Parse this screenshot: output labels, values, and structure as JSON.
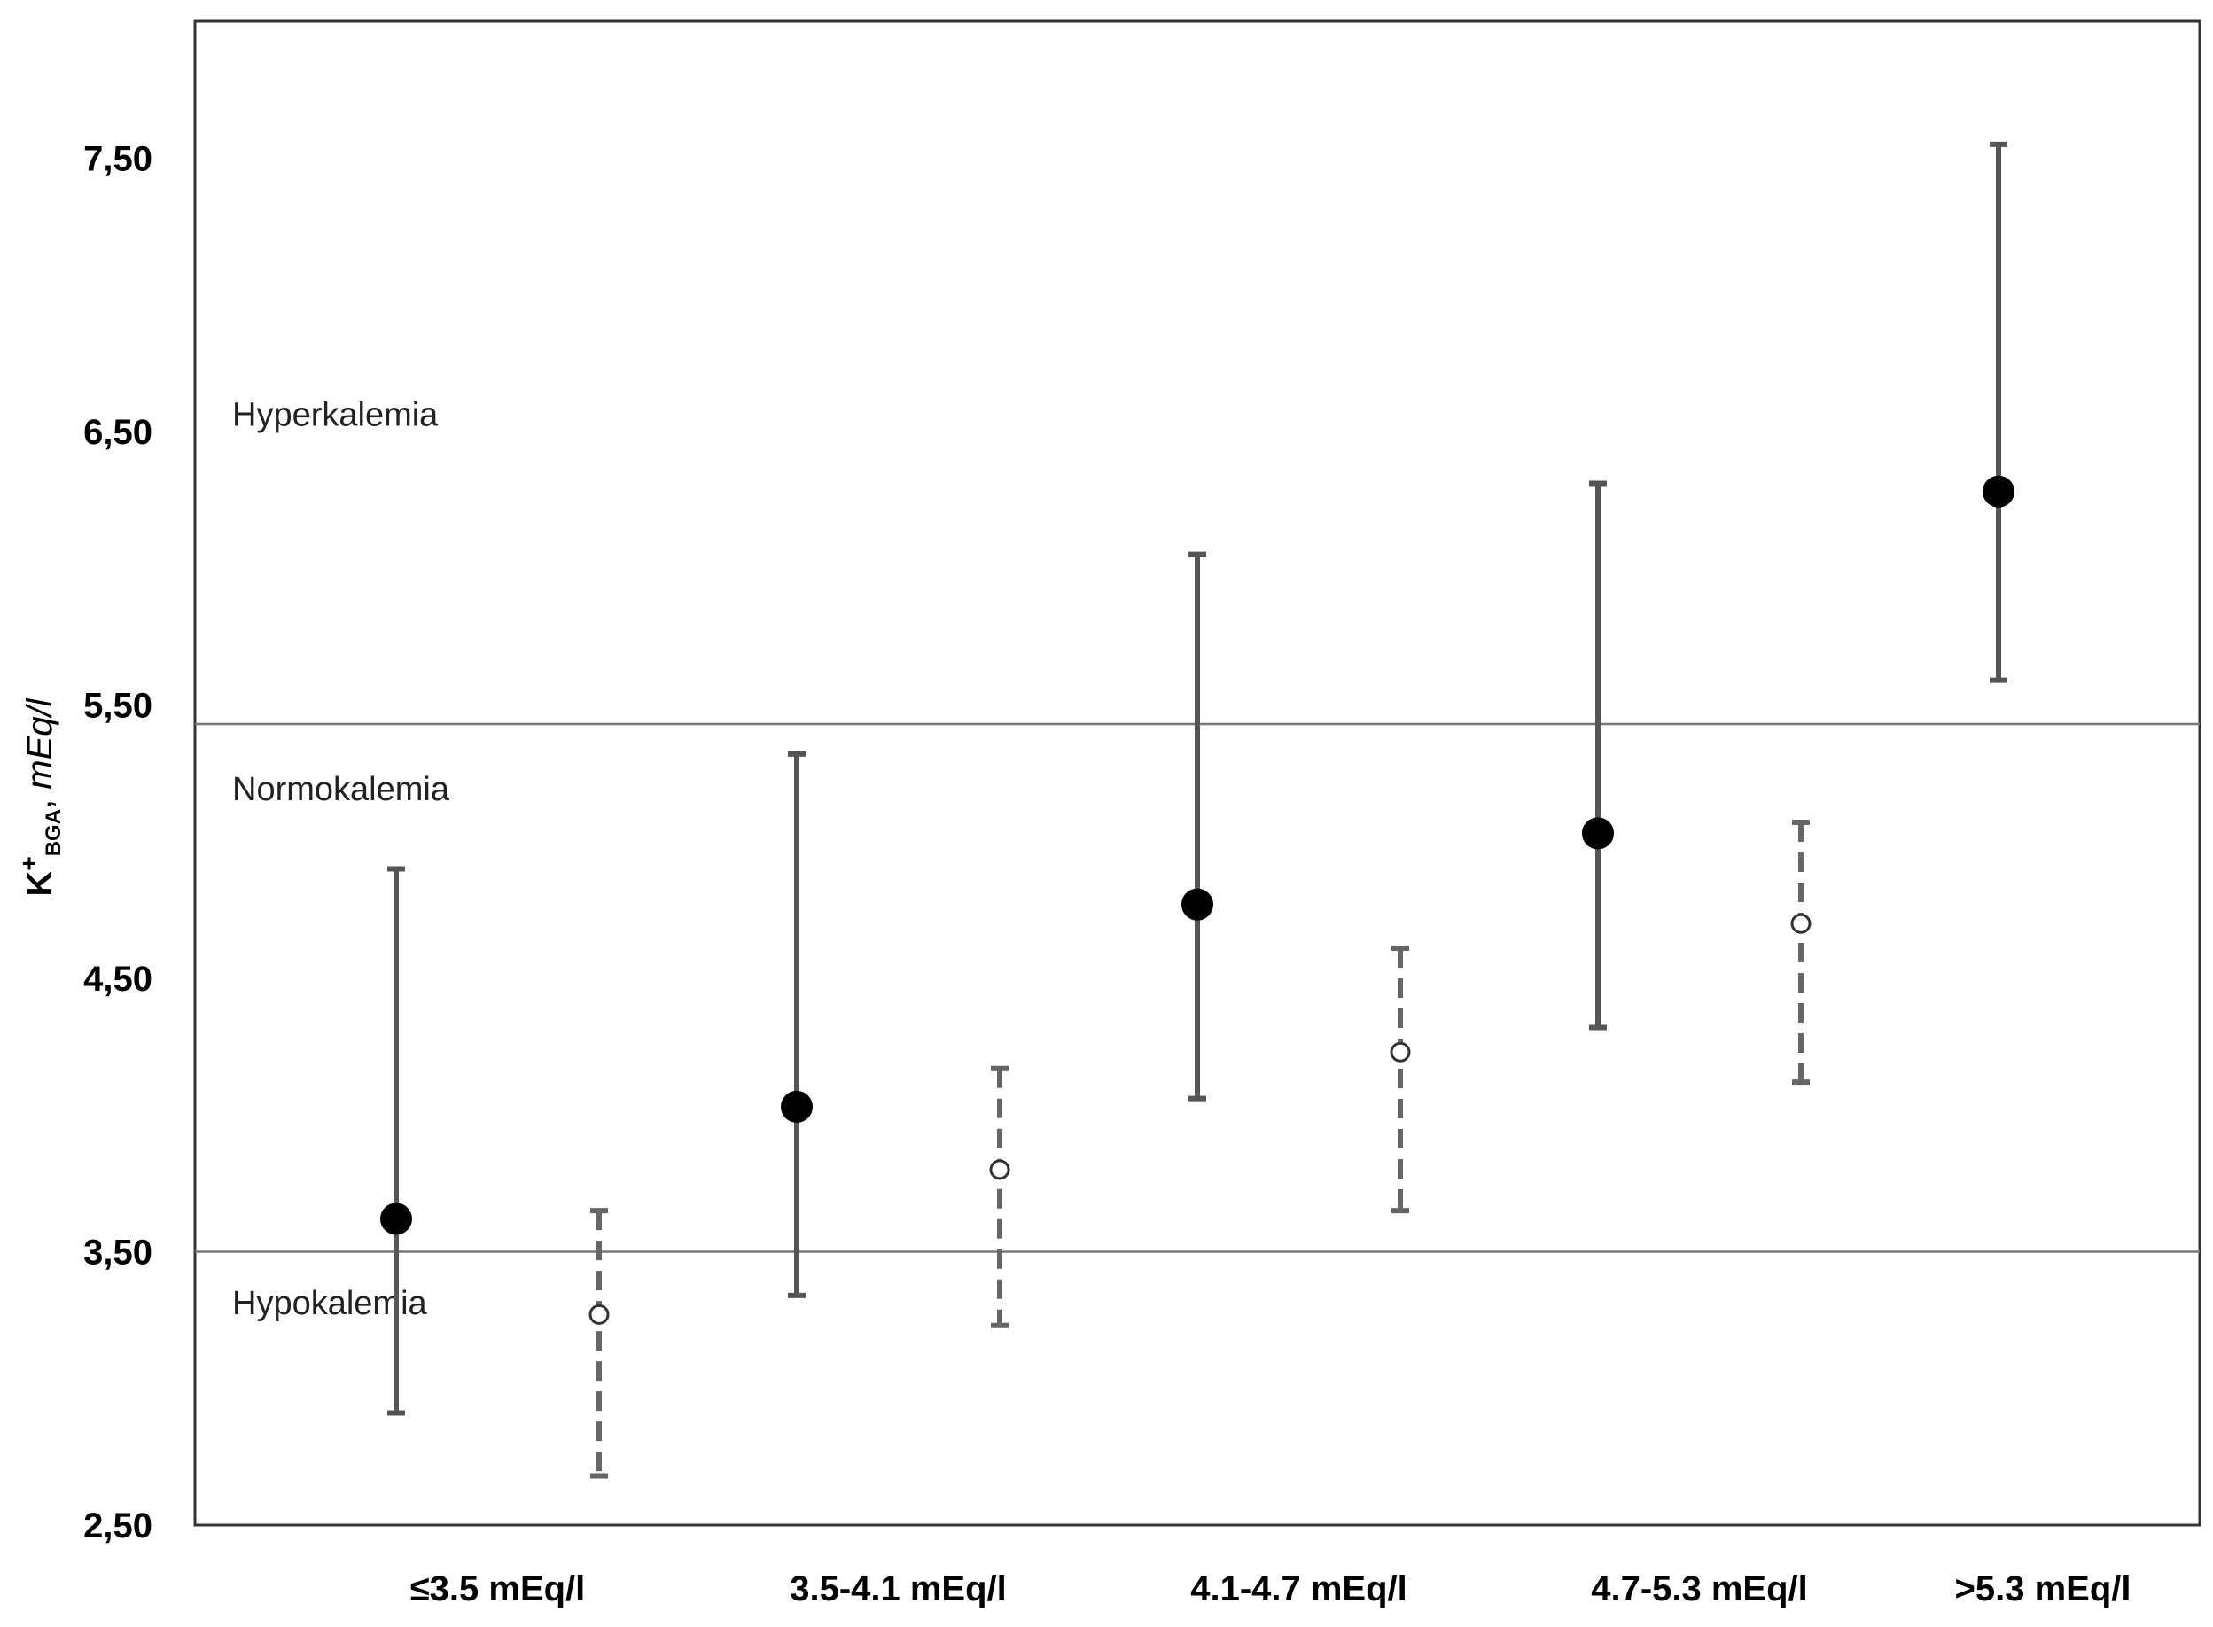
{
  "chart_data": {
    "type": "errorbar",
    "ylabel": {
      "base": "K",
      "superscript": "+",
      "subscript": "BGA",
      "separator": ", ",
      "unit": "mEq/l"
    },
    "ylim": [
      2.5,
      8.0
    ],
    "yticks": [
      {
        "value": 2.5,
        "label": "2,50"
      },
      {
        "value": 3.5,
        "label": "3,50"
      },
      {
        "value": 4.5,
        "label": "4,50"
      },
      {
        "value": 5.5,
        "label": "5,50"
      },
      {
        "value": 6.5,
        "label": "6,50"
      },
      {
        "value": 7.5,
        "label": "7,50"
      }
    ],
    "categories": [
      "≤3.5 mEq/l",
      "3.5-4.1 mEq/l",
      "4.1-4.7 mEq/l",
      "4.7-5.3 mEq/l",
      ">5.3 mEq/l"
    ],
    "reference_lines": [
      {
        "value": 5.43
      },
      {
        "value": 3.5
      }
    ],
    "zones": [
      {
        "label": "Hyperkalemia",
        "value": 6.56
      },
      {
        "label": "Normokalemia",
        "value": 5.19
      },
      {
        "label": "Hypokalemia",
        "value": 3.31
      }
    ],
    "series": [
      {
        "style": "solid",
        "marker": "filled",
        "points": [
          {
            "category": 0,
            "mean": 3.62,
            "low": 2.91,
            "high": 4.9
          },
          {
            "category": 1,
            "mean": 4.03,
            "low": 3.34,
            "high": 5.32
          },
          {
            "category": 2,
            "mean": 4.77,
            "low": 4.06,
            "high": 6.05
          },
          {
            "category": 3,
            "mean": 5.03,
            "low": 4.32,
            "high": 6.31
          },
          {
            "category": 4,
            "mean": 6.28,
            "low": 5.59,
            "high": 7.55
          }
        ]
      },
      {
        "style": "dashed",
        "marker": "open",
        "points": [
          {
            "category": 0,
            "mean": 3.27,
            "low": 2.68,
            "high": 3.65
          },
          {
            "category": 1,
            "mean": 3.8,
            "low": 3.23,
            "high": 4.17
          },
          {
            "category": 2,
            "mean": 4.23,
            "low": 3.65,
            "high": 4.61
          },
          {
            "category": 3,
            "mean": 4.7,
            "low": 4.12,
            "high": 5.07
          }
        ]
      }
    ],
    "colors": {
      "solid_bar": "#555555",
      "dashed_bar": "#666666",
      "filled_marker": "#000000",
      "open_marker_fill": "#ffffff",
      "reference_line": "#777777",
      "frame": "#333333"
    }
  }
}
